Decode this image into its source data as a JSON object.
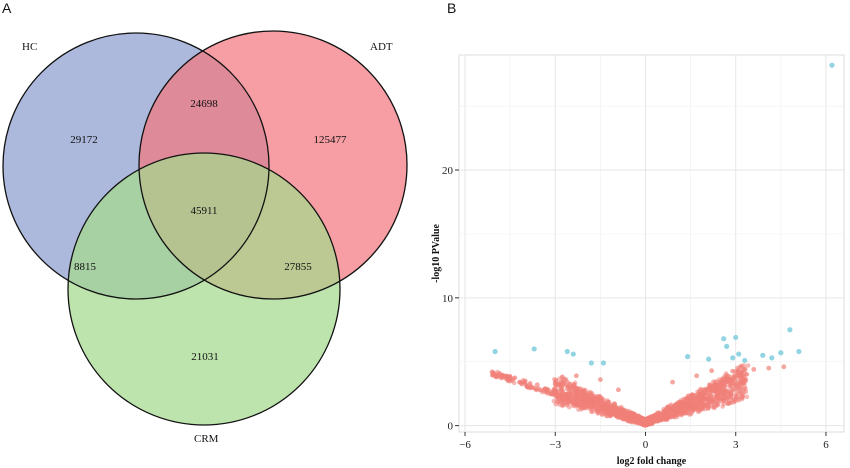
{
  "panels": {
    "a": "A",
    "b": "B"
  },
  "chart_data": [
    {
      "type": "venn",
      "sets": [
        {
          "name": "HC",
          "color": "#8c9ccf"
        },
        {
          "name": "ADT",
          "color": "#f2787f"
        },
        {
          "name": "CRM",
          "color": "#a5d98d"
        }
      ],
      "regions": [
        {
          "id": "HC_only",
          "sets": [
            "HC"
          ],
          "value": 29172
        },
        {
          "id": "ADT_only",
          "sets": [
            "ADT"
          ],
          "value": 125477
        },
        {
          "id": "CRM_only",
          "sets": [
            "CRM"
          ],
          "value": 21031
        },
        {
          "id": "HC_ADT",
          "sets": [
            "HC",
            "ADT"
          ],
          "value": 24698
        },
        {
          "id": "HC_CRM",
          "sets": [
            "HC",
            "CRM"
          ],
          "value": 8815
        },
        {
          "id": "ADT_CRM",
          "sets": [
            "ADT",
            "CRM"
          ],
          "value": 27855
        },
        {
          "id": "HC_ADT_CRM",
          "sets": [
            "HC",
            "ADT",
            "CRM"
          ],
          "value": 45911
        }
      ]
    },
    {
      "type": "scatter",
      "title": "",
      "xlabel": "log2 fold change",
      "ylabel": "-log10 PValue",
      "xlim": [
        -6.2,
        6.6
      ],
      "ylim": [
        -0.5,
        29
      ],
      "xticks": [
        -6,
        -3,
        0,
        3,
        6
      ],
      "xtick_labels": [
        "-6",
        "-3",
        "0",
        "3",
        "6"
      ],
      "yticks": [
        0,
        10,
        20
      ],
      "ytick_labels": [
        "0",
        "10",
        "20"
      ],
      "grid": true,
      "colors": {
        "not_significant": "#f08078",
        "significant": "#87cfe0"
      },
      "series": [
        {
          "points": [
            [
              -5.1,
              4.2
            ],
            [
              -4.5,
              3.8
            ],
            [
              -4.0,
              3.5
            ],
            [
              -3.6,
              3.2
            ],
            [
              -3.0,
              2.9
            ],
            [
              -2.5,
              2.5
            ],
            [
              -2.0,
              2.1
            ],
            [
              -1.6,
              1.7
            ],
            [
              -1.2,
              1.3
            ],
            [
              -0.8,
              0.9
            ],
            [
              -0.4,
              0.4
            ],
            [
              0.0,
              0.05
            ],
            [
              0.4,
              0.5
            ],
            [
              0.8,
              1.0
            ],
            [
              1.2,
              1.5
            ],
            [
              1.6,
              2.0
            ],
            [
              2.0,
              2.6
            ],
            [
              2.4,
              3.0
            ],
            [
              2.8,
              3.6
            ],
            [
              3.2,
              4.2
            ],
            [
              -2.3,
              3.9
            ],
            [
              -1.5,
              3.6
            ],
            [
              -0.9,
              2.8
            ],
            [
              0.9,
              3.4
            ],
            [
              1.7,
              3.9
            ],
            [
              2.2,
              4.3
            ],
            [
              3.6,
              4.4
            ],
            [
              4.1,
              4.5
            ],
            [
              4.6,
              4.6
            ],
            [
              -2.8,
              3.4
            ]
          ]
        },
        {
          "points": [
            [
              6.2,
              28.2
            ],
            [
              4.8,
              7.5
            ],
            [
              -5.0,
              5.8
            ],
            [
              -3.7,
              6.0
            ],
            [
              -2.6,
              5.8
            ],
            [
              -2.4,
              5.6
            ],
            [
              -1.8,
              4.9
            ],
            [
              -1.4,
              4.9
            ],
            [
              1.4,
              5.4
            ],
            [
              2.1,
              5.2
            ],
            [
              2.6,
              6.8
            ],
            [
              2.7,
              6.2
            ],
            [
              2.9,
              5.3
            ],
            [
              3.0,
              6.9
            ],
            [
              3.1,
              5.6
            ],
            [
              3.3,
              5.1
            ],
            [
              3.9,
              5.5
            ],
            [
              4.2,
              5.3
            ],
            [
              4.5,
              5.7
            ],
            [
              5.1,
              5.8
            ]
          ]
        }
      ]
    }
  ]
}
